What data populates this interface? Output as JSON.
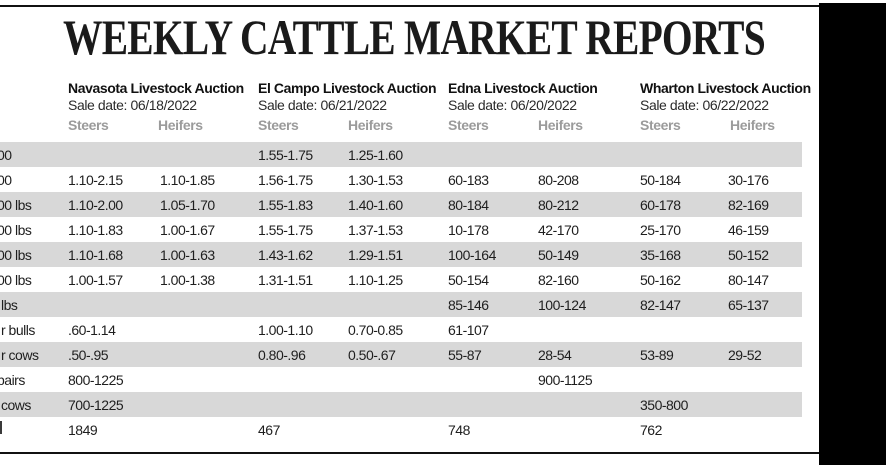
{
  "title": "WEEKLY CATTLE MARKET REPORTS",
  "auctions": [
    {
      "name": "Navasota Livestock Auction",
      "sale_date": "Sale date: 06/18/2022",
      "columns": [
        "Steers",
        "Heifers"
      ]
    },
    {
      "name": "El Campo Livestock Auction",
      "sale_date": "Sale date: 06/21/2022",
      "columns": [
        "Steers",
        "Heifers"
      ]
    },
    {
      "name": "Edna Livestock Auction",
      "sale_date": "Sale date: 06/20/2022",
      "columns": [
        "Steers",
        "Heifers"
      ]
    },
    {
      "name": "Wharton Livestock Auction",
      "sale_date": "Sale date: 06/22/2022",
      "columns": [
        "Steers",
        "Heifers"
      ]
    }
  ],
  "table": {
    "cell_columns": [
      "Navasota Steers",
      "Navasota Heifers",
      "El Campo Steers",
      "El Campo Heifers",
      "Edna Steers",
      "Edna Heifers",
      "Wharton Steers",
      "Wharton Heifers"
    ],
    "rows": [
      {
        "label": "00",
        "cells": [
          "",
          "",
          "1.55-1.75",
          "1.25-1.60",
          "",
          "",
          "",
          ""
        ]
      },
      {
        "label": "00",
        "cells": [
          "1.10-2.15",
          "1.10-1.85",
          "1.56-1.75",
          "1.30-1.53",
          "60-183",
          "80-208",
          "50-184",
          "30-176"
        ]
      },
      {
        "label": "00 lbs",
        "cells": [
          "1.10-2.00",
          "1.05-1.70",
          "1.55-1.83",
          "1.40-1.60",
          "80-184",
          "80-212",
          "60-178",
          "82-169"
        ]
      },
      {
        "label": "00 lbs",
        "cells": [
          "1.10-1.83",
          "1.00-1.67",
          "1.55-1.75",
          "1.37-1.53",
          "10-178",
          "42-170",
          "25-170",
          "46-159"
        ]
      },
      {
        "label": "00 lbs",
        "cells": [
          "1.10-1.68",
          "1.00-1.63",
          "1.43-1.62",
          "1.29-1.51",
          "100-164",
          "50-149",
          "35-168",
          "50-152"
        ]
      },
      {
        "label": "00 lbs",
        "cells": [
          "1.00-1.57",
          "1.00-1.38",
          "1.31-1.51",
          "1.10-1.25",
          "50-154",
          "82-160",
          "50-162",
          "80-147"
        ]
      },
      {
        "label": "lbs",
        "cells": [
          "",
          "",
          "",
          "",
          "85-146",
          "100-124",
          "82-147",
          "65-137"
        ]
      },
      {
        "label": "r bulls",
        "cells": [
          ".60-1.14",
          "",
          "1.00-1.10",
          "0.70-0.85",
          "61-107",
          "",
          "",
          ""
        ]
      },
      {
        "label": "r cows",
        "cells": [
          ".50-.95",
          "",
          "0.80-.96",
          "0.50-.67",
          "55-87",
          "28-54",
          "53-89",
          "29-52"
        ]
      },
      {
        "label": "pairs",
        "cells": [
          "800-1225",
          "",
          "",
          "",
          "",
          "900-1125",
          "",
          ""
        ]
      },
      {
        "label": "cows",
        "cells": [
          "700-1225",
          "",
          "",
          "",
          "",
          "",
          "350-800",
          ""
        ]
      },
      {
        "label": "",
        "cells": [
          "1849",
          "",
          "467",
          "",
          "748",
          "",
          "762",
          ""
        ]
      }
    ]
  },
  "colors": {
    "row_band": "#d8d8d8",
    "muted_header": "#9b9b9b",
    "rule": "#111111",
    "right_bar": "#000000"
  }
}
